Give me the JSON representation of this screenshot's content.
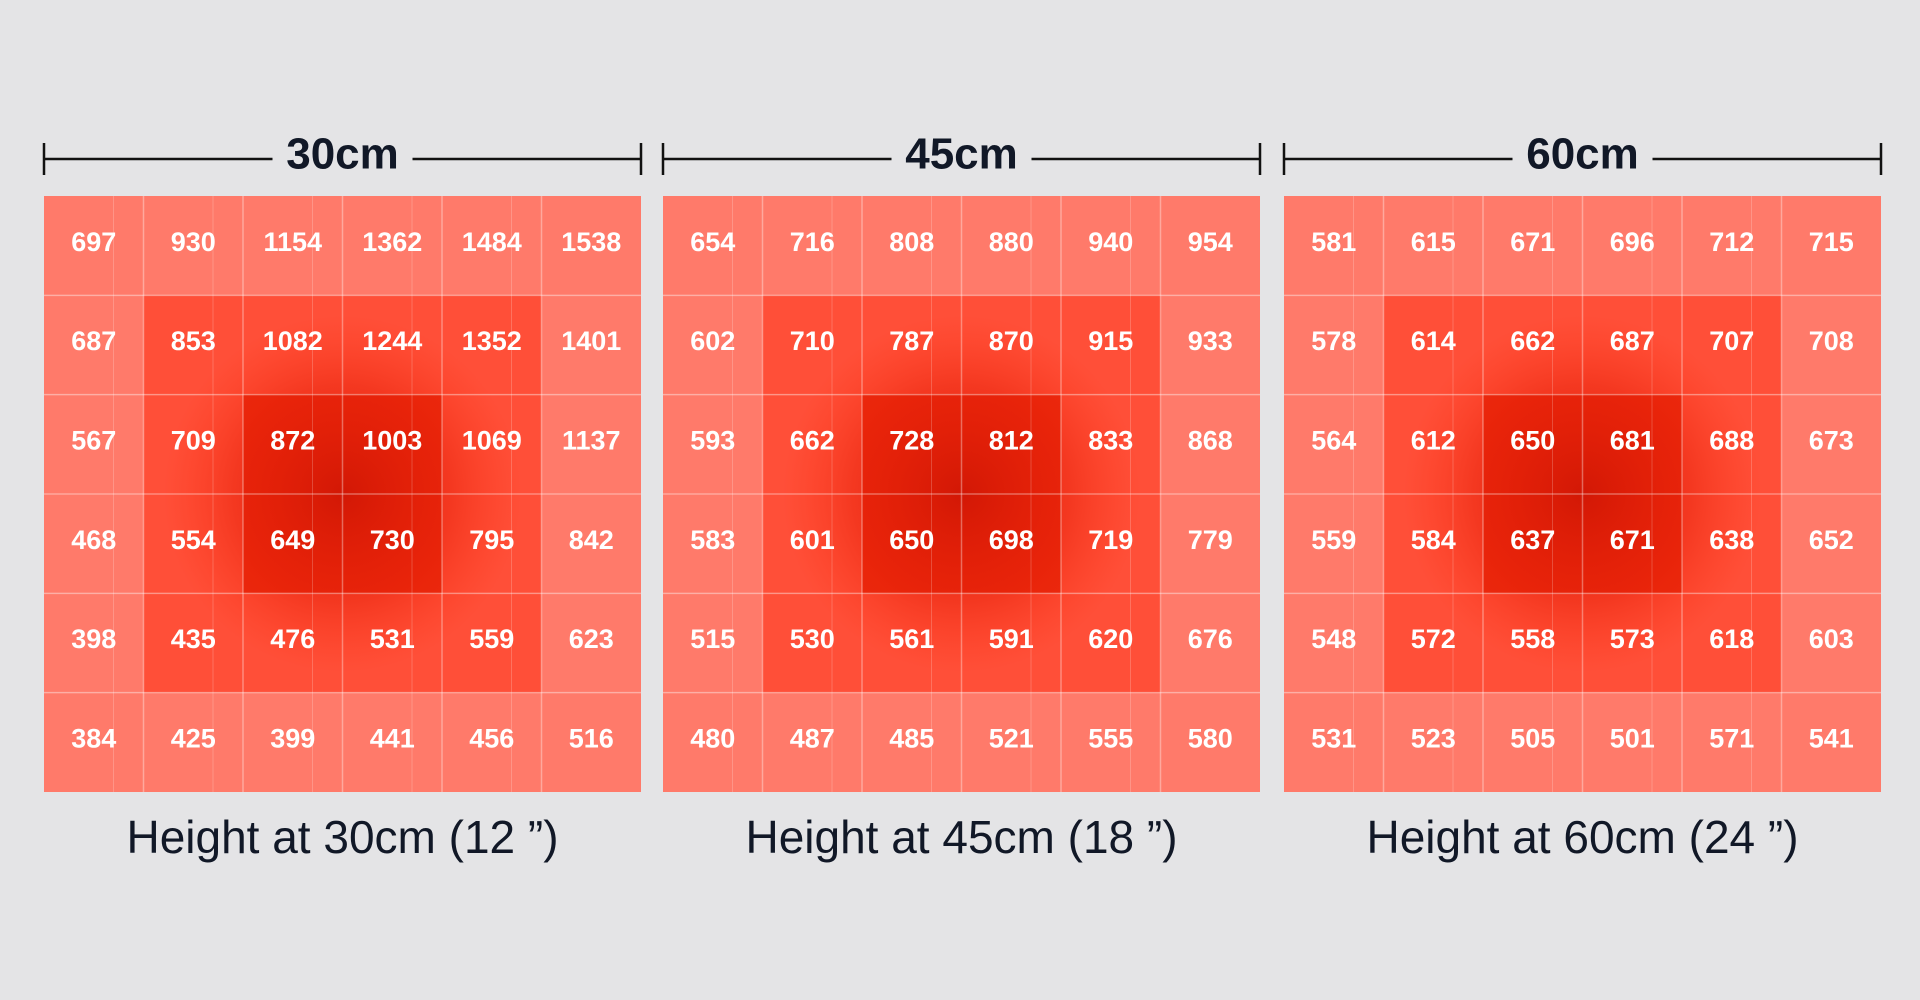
{
  "panels": [
    {
      "title": "30cm",
      "caption": "Height at 30cm (12 ”)",
      "rows": [
        [
          697,
          930,
          1154,
          1362,
          1484,
          1538
        ],
        [
          687,
          853,
          1082,
          1244,
          1352,
          1401
        ],
        [
          567,
          709,
          872,
          1003,
          1069,
          1137
        ],
        [
          468,
          554,
          649,
          730,
          795,
          842
        ],
        [
          398,
          435,
          476,
          531,
          559,
          623
        ],
        [
          384,
          425,
          399,
          441,
          456,
          516
        ]
      ]
    },
    {
      "title": "45cm",
      "caption": "Height at 45cm (18 ”)",
      "rows": [
        [
          654,
          716,
          808,
          880,
          940,
          954
        ],
        [
          602,
          710,
          787,
          870,
          915,
          933
        ],
        [
          593,
          662,
          728,
          812,
          833,
          868
        ],
        [
          583,
          601,
          650,
          698,
          719,
          779
        ],
        [
          515,
          530,
          561,
          591,
          620,
          676
        ],
        [
          480,
          487,
          485,
          521,
          555,
          580
        ]
      ]
    },
    {
      "title": "60cm",
      "caption": "Height at 60cm (24 ”)",
      "rows": [
        [
          581,
          615,
          671,
          696,
          712,
          715
        ],
        [
          578,
          614,
          662,
          687,
          707,
          708
        ],
        [
          564,
          612,
          650,
          681,
          688,
          673
        ],
        [
          559,
          584,
          637,
          671,
          638,
          652
        ],
        [
          548,
          572,
          558,
          573,
          618,
          603
        ],
        [
          531,
          523,
          505,
          501,
          571,
          541
        ]
      ]
    }
  ]
}
